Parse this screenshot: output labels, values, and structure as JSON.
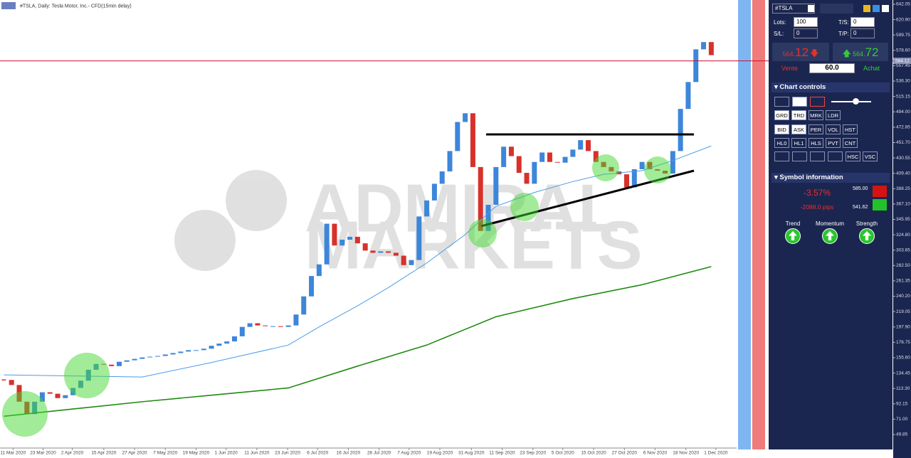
{
  "chart_data": {
    "type": "candlestick",
    "title": "#TSLA, Daily:  Tesla Motor, Inc.- CFD(15min delay)",
    "watermark": [
      "ADMIRAL",
      "MARKETS"
    ],
    "up_color": "#3d86d9",
    "down_color": "#d8312b",
    "closes": [
      125,
      118,
      95,
      78,
      95,
      108,
      106,
      100,
      104,
      114,
      124,
      139,
      147,
      146,
      144,
      150,
      152,
      154,
      156,
      157,
      158,
      160,
      162,
      164,
      166,
      166,
      168,
      172,
      175,
      178,
      185,
      198,
      203,
      200,
      199,
      199,
      198,
      200,
      215,
      240,
      268,
      284,
      340,
      310,
      318,
      322,
      313,
      303,
      300,
      302,
      300,
      296,
      283,
      290,
      350,
      372,
      395,
      412,
      440,
      480,
      492,
      418,
      330,
      366,
      418,
      446,
      433,
      410,
      395,
      425,
      438,
      425,
      424,
      432,
      442,
      455,
      440,
      425,
      418,
      412,
      408,
      390,
      415,
      425,
      415,
      413,
      409,
      440,
      498,
      535,
      580,
      590,
      572
    ],
    "moving_averages": [
      {
        "color": "#4a9be8",
        "x": [
          0,
          18,
          27,
          37,
          41,
          46,
          50,
          55,
          60,
          64,
          69,
          74,
          78,
          83,
          87,
          92
        ],
        "values": [
          132,
          129,
          149,
          173,
          198,
          227,
          252,
          286,
          325,
          364,
          383,
          398,
          408,
          413,
          427,
          447
        ]
      },
      {
        "color": "#1f8a10",
        "x": [
          0,
          9,
          18,
          27,
          37,
          46,
          55,
          64,
          74,
          83,
          92
        ],
        "values": [
          75,
          85,
          95,
          104,
          114,
          144,
          173,
          212,
          237,
          256,
          281
        ]
      }
    ],
    "current_price": 564.12,
    "current_price_color": "#c8102e",
    "xlim": [
      0,
      95.8
    ],
    "xticks": [
      {
        "value": 1.7,
        "label": "11 Mar 2020"
      },
      {
        "value": 5.6,
        "label": "23 Mar 2020"
      },
      {
        "value": 9.4,
        "label": "2 Apr 2020"
      },
      {
        "value": 13.5,
        "label": "15 Apr 2020"
      },
      {
        "value": 17.5,
        "label": "27 Apr 2020"
      },
      {
        "value": 21.5,
        "label": "7 May 2020"
      },
      {
        "value": 25.5,
        "label": "19 May 2020"
      },
      {
        "value": 29.4,
        "label": "1 Jun 2020"
      },
      {
        "value": 33.4,
        "label": "11 Jun 2020"
      },
      {
        "value": 37.4,
        "label": "23 Jun 2020"
      },
      {
        "value": 41.3,
        "label": "6 Jul 2020"
      },
      {
        "value": 45.3,
        "label": "16 Jul 2020"
      },
      {
        "value": 49.3,
        "label": "28 Jul 2020"
      },
      {
        "value": 53.2,
        "label": "7 Aug 2020"
      },
      {
        "value": 57.2,
        "label": "19 Aug 2020"
      },
      {
        "value": 61.3,
        "label": "31 Aug 2020"
      },
      {
        "value": 65.3,
        "label": "11 Sep 2020"
      },
      {
        "value": 69.3,
        "label": "23 Sep 2020"
      },
      {
        "value": 73.2,
        "label": "5 Oct 2020"
      },
      {
        "value": 77.2,
        "label": "15 Oct 2020"
      },
      {
        "value": 81.2,
        "label": "27 Oct 2020"
      },
      {
        "value": 85.2,
        "label": "6 Nov 2020"
      },
      {
        "value": 89.2,
        "label": "18 Nov 2020"
      },
      {
        "value": 93.1,
        "label": "1 Dec 2020"
      }
    ],
    "ylim": [
      31.25,
      647.9
    ],
    "yticks": [
      642.05,
      {
        "value": 620.9,
        "label": "620.90"
      },
      599.75,
      {
        "value": 578.6,
        "label": "578.60"
      },
      557.45,
      {
        "value": 536.3,
        "label": "536.30"
      },
      515.15,
      {
        "value": 494,
        "label": "494.00"
      },
      472.85,
      {
        "value": 451.7,
        "label": "451.70"
      },
      430.55,
      {
        "value": 409.4,
        "label": "409.40"
      },
      388.25,
      {
        "value": 367.1,
        "label": "367.10"
      },
      345.95,
      {
        "value": 324.8,
        "label": "324.80"
      },
      303.65,
      {
        "value": 282.5,
        "label": "282.50"
      },
      261.35,
      {
        "value": 240.2,
        "label": "240.20"
      },
      219.05,
      {
        "value": 197.9,
        "label": "197.90"
      },
      176.75,
      {
        "value": 155.6,
        "label": "155.60"
      },
      134.45,
      {
        "value": 113.3,
        "label": "113.30"
      },
      92.15,
      {
        "value": 71,
        "label": "71.00"
      },
      49.85
    ]
  },
  "panel": {
    "symbol": "#TSLA",
    "lots_label": "Lots:",
    "lots": "100",
    "ts_label": "T/S:",
    "ts": "0",
    "sl_label": "S/L:",
    "sl": "0",
    "tp_label": "T/P:",
    "tp": "0",
    "sell_small": "564.",
    "sell_big": "12",
    "buy_small": "564.",
    "buy_big": "72",
    "sell_label": "Vente",
    "buy_label": "Achat",
    "timeframe": "60.0",
    "chart_controls": "Chart controls",
    "buttons": [
      [
        "GRD",
        "TRD",
        "MRK",
        "LDR"
      ],
      [
        "BID",
        "ASK",
        "PER",
        "VOL",
        "HST"
      ],
      [
        "HL0",
        "HL1",
        "HLS",
        "PVT",
        "CNT"
      ],
      [
        "HSC",
        "VSC"
      ]
    ],
    "symbol_information": "Symbol information",
    "change": "-3.57%",
    "pips": "-2088.0 pips",
    "high": "585.00",
    "low": "541.62",
    "indicators": [
      "Trend",
      "Momentum",
      "Strength"
    ]
  }
}
